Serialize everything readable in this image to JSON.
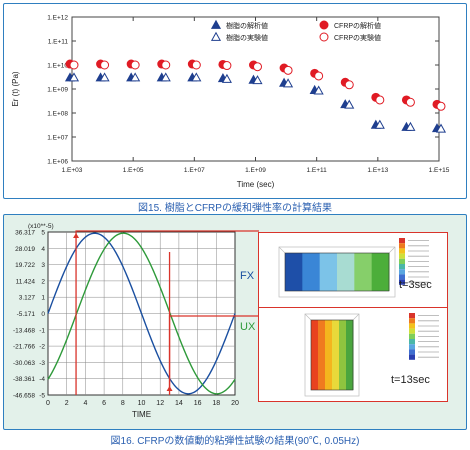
{
  "figure1": {
    "caption": "図15. 樹脂とCFRPの緩和弾性率の計算結果",
    "chart_data": {
      "type": "scatter",
      "ylabel": "Er (t) (Pa)",
      "xlabel": "Time (sec)",
      "x_scale": "log",
      "y_scale": "log",
      "xlim": [
        1000,
        1000000000000000.0
      ],
      "ylim": [
        1000000.0,
        1000000000000.0
      ],
      "x_ticks": [
        "1.E+03",
        "1.E+05",
        "1.E+07",
        "1.E+09",
        "1.E+11",
        "1.E+13",
        "1.E+15"
      ],
      "y_ticks": [
        "1.E+06",
        "1.E+07",
        "1.E+08",
        "1.E+09",
        "1.E+10",
        "1.E+11",
        "1.E+12"
      ],
      "legend_position": "top-right",
      "series": [
        {
          "name": "樹脂の解析値",
          "marker": "filled-triangle",
          "color": "#1f3f8f",
          "x": [
            1000.0,
            10000.0,
            100000.0,
            1000000.0,
            10000000.0,
            100000000.0,
            1000000000.0,
            10000000000.0,
            100000000000.0,
            1000000000000.0,
            10000000000000.0,
            100000000000000.0,
            1000000000000000.0
          ],
          "y": [
            3000000000.0,
            3000000000.0,
            3000000000.0,
            3000000000.0,
            3000000000.0,
            2800000000.0,
            2400000000.0,
            1800000000.0,
            900000000.0,
            230000000.0,
            32000000.0,
            26000000.0,
            23000000.0
          ]
        },
        {
          "name": "樹脂の実験値",
          "marker": "open-triangle",
          "color": "#1f3f8f",
          "x": [
            1000.0,
            10000.0,
            100000.0,
            1000000.0,
            10000000.0,
            100000000.0,
            1000000000.0,
            10000000000.0,
            100000000000.0,
            1000000000000.0,
            10000000000000.0,
            100000000000000.0,
            1000000000000000.0
          ],
          "y": [
            3000000000.0,
            3000000000.0,
            3000000000.0,
            3000000000.0,
            3000000000.0,
            2600000000.0,
            2300000000.0,
            1700000000.0,
            850000000.0,
            220000000.0,
            32000000.0,
            26000000.0,
            22000000.0
          ]
        },
        {
          "name": "CFRPの解析値",
          "marker": "filled-circle",
          "color": "#e01b24",
          "x": [
            1000.0,
            10000.0,
            100000.0,
            1000000.0,
            10000000.0,
            100000000.0,
            1000000000.0,
            10000000000.0,
            100000000000.0,
            1000000000000.0,
            10000000000000.0,
            100000000000000.0,
            1000000000000000.0
          ],
          "y": [
            11000000000.0,
            11000000000.0,
            11000000000.0,
            11000000000.0,
            11000000000.0,
            10500000000.0,
            10000000000.0,
            7500000000.0,
            4500000000.0,
            1900000000.0,
            450000000.0,
            350000000.0,
            230000000.0
          ]
        },
        {
          "name": "CFRPの実験値",
          "marker": "open-circle",
          "color": "#e01b24",
          "x": [
            1000.0,
            10000.0,
            100000.0,
            1000000.0,
            10000000.0,
            100000000.0,
            1000000000.0,
            10000000000.0,
            100000000000.0,
            1000000000000.0,
            10000000000000.0,
            100000000000000.0,
            1000000000000000.0
          ],
          "y": [
            10000000000.0,
            10000000000.0,
            10000000000.0,
            10000000000.0,
            10000000000.0,
            9500000000.0,
            8500000000.0,
            6000000000.0,
            3500000000.0,
            1500000000.0,
            350000000.0,
            280000000.0,
            190000000.0
          ]
        }
      ]
    }
  },
  "figure2": {
    "caption": "図16. CFRPの数値動的粘弾性試験の結果(90℃, 0.05Hz)",
    "chart_data": {
      "type": "line",
      "xlabel": "TIME",
      "y_multiplier_label": "(x10**-5)",
      "xlim": [
        0,
        20
      ],
      "ylim": [
        -46.658,
        36.317
      ],
      "x_ticks": [
        0,
        2,
        4,
        6,
        8,
        10,
        12,
        14,
        16,
        18,
        20
      ],
      "y_ticks": [
        "36.317",
        "28.019",
        "19.722",
        "11.424",
        "3.127",
        "-5.171",
        "-13.468",
        "-21.766",
        "-30.063",
        "-38.361",
        "-46.658"
      ],
      "right_scale_ticks": [
        "5",
        "4",
        "3",
        "2",
        "1",
        "0",
        "-1",
        "-2",
        "-3",
        "-4",
        "-5"
      ],
      "series": [
        {
          "name": "FX",
          "color": "#1a4fa0",
          "amplitude": 5,
          "period": 20,
          "phase_deg": 0
        },
        {
          "name": "UX",
          "color": "#2e9a3a",
          "amplitude": 5,
          "period": 20,
          "phase_deg": -55
        }
      ],
      "annotations": [
        "t=3sec",
        "t=13sec"
      ]
    },
    "insets": [
      {
        "label": "t=3sec",
        "bands": [
          "#1e4fa8",
          "#3a86d6",
          "#7cc3e8",
          "#a8dcd2",
          "#86cf6a",
          "#4cae3a"
        ]
      },
      {
        "label": "t=13sec",
        "bands": [
          "#e8421f",
          "#f07a1f",
          "#f4b51e",
          "#e9d93a",
          "#8ec43f",
          "#4aa53e"
        ]
      }
    ]
  }
}
